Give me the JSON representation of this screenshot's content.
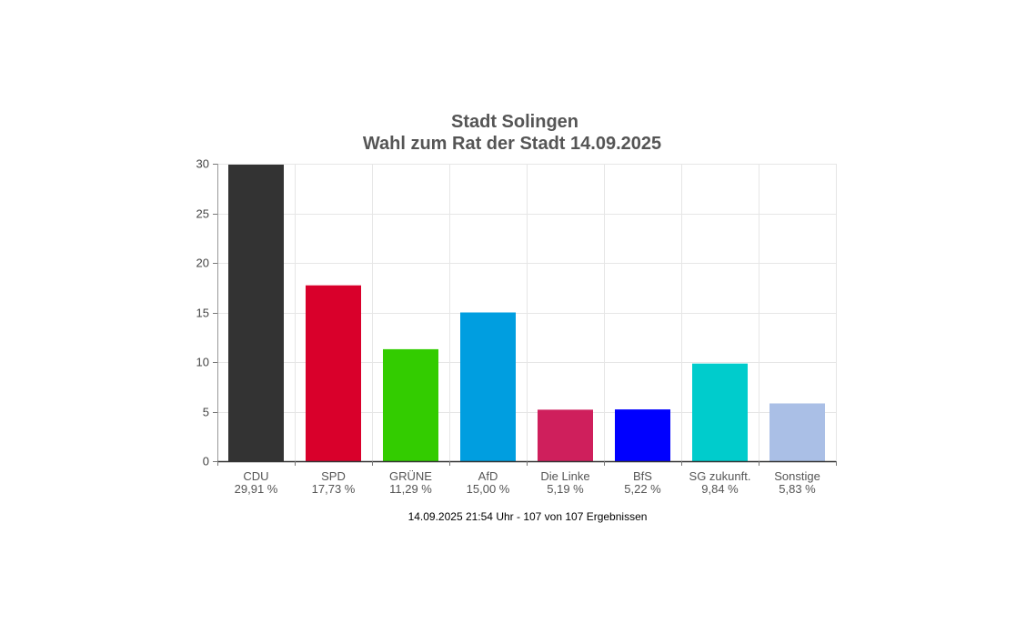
{
  "chart_data": {
    "type": "bar",
    "title": "Stadt Solingen",
    "subtitle": "Wahl zum Rat der Stadt 14.09.2025",
    "ylim": [
      0,
      30
    ],
    "yticks": [
      "0",
      "5",
      "10",
      "15",
      "20",
      "25",
      "30"
    ],
    "grid": true,
    "categories": [
      "CDU",
      "SPD",
      "GRÜNE",
      "AfD",
      "Die Linke",
      "BfS",
      "SG zukunft.",
      "Sonstige"
    ],
    "values": [
      29.91,
      17.73,
      11.29,
      15.0,
      5.19,
      5.22,
      9.84,
      5.83
    ],
    "value_labels": [
      "29,91 %",
      "17,73 %",
      "11,29 %",
      "15,00 %",
      "5,19 %",
      "5,22 %",
      "9,84 %",
      "5,83 %"
    ],
    "colors": [
      "#333333",
      "#d9002b",
      "#33cc00",
      "#009ee0",
      "#cf1f5c",
      "#0000ff",
      "#00cccc",
      "#aabfe6"
    ]
  },
  "footer": "14.09.2025 21:54 Uhr - 107 von 107 Ergebnissen"
}
